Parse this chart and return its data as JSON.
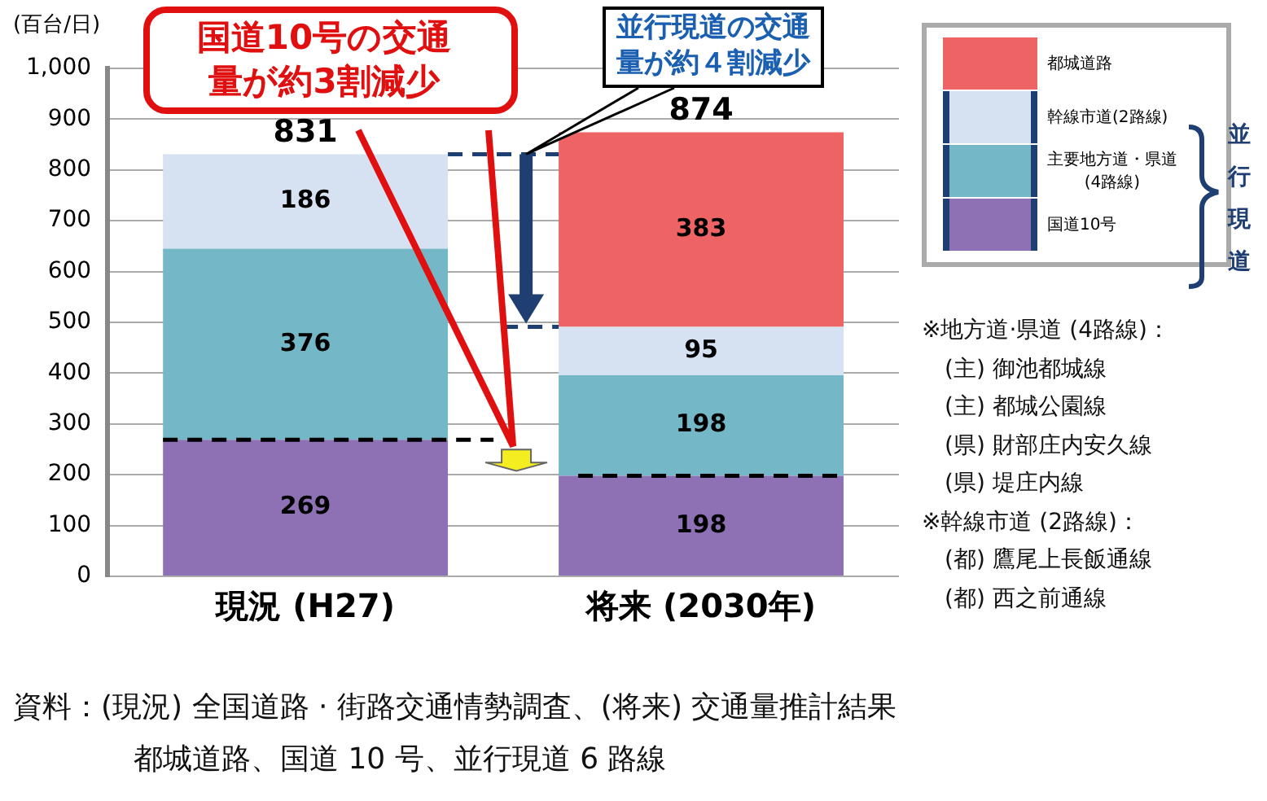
{
  "chart_data": {
    "type": "bar",
    "stacked": true,
    "ylabel": "(百台/日)",
    "categories": [
      "現況 (H27)",
      "将来 (2030年)"
    ],
    "series": [
      {
        "name": "国道10号",
        "color": "#8e70b4",
        "values": [
          269,
          198
        ]
      },
      {
        "name": "主要地方道・県道\n(4路線)",
        "color": "#74b7c6",
        "values": [
          376,
          198
        ]
      },
      {
        "name": "幹線市道(2路線)",
        "color": "#d6e2f2",
        "values": [
          186,
          95
        ]
      },
      {
        "name": "都城道路",
        "color": "#ee6464",
        "values": [
          null,
          383
        ]
      }
    ],
    "totals": [
      "831",
      "874"
    ],
    "data_labels": true,
    "ylim": [
      0,
      1000
    ],
    "yticks": [
      0,
      100,
      200,
      300,
      400,
      500,
      600,
      700,
      800,
      900,
      {
        "value": 1000,
        "label": "1,000"
      }
    ],
    "grid": "y",
    "ref_lines": [
      {
        "axis": "y",
        "value": 269,
        "color": "#000000",
        "line_style": "dashed"
      },
      {
        "axis": "y",
        "value": 198,
        "color": "#000000",
        "line_style": "dashed"
      }
    ],
    "legend": "top right",
    "annotations": [
      "国道10号の交通量が約3割減少",
      "並行現道の交通量が約４割減少",
      "並行現道",
      "※地方道·県道 (4路線)：",
      "(主) 御池都城線",
      "(主) 都城公園線",
      "(県) 財部庄内安久線",
      "(県) 堤庄内線",
      "※幹線市道 (2路線)：",
      "(都) 鷹尾上長飯通線",
      "(都) 西之前通線",
      "資料：(現況) 全国道路 · 街路交通情勢調査、(将来) 交通量推計結果",
      "都城道路、国道 10 号、並行現道 6 路線"
    ]
  }
}
